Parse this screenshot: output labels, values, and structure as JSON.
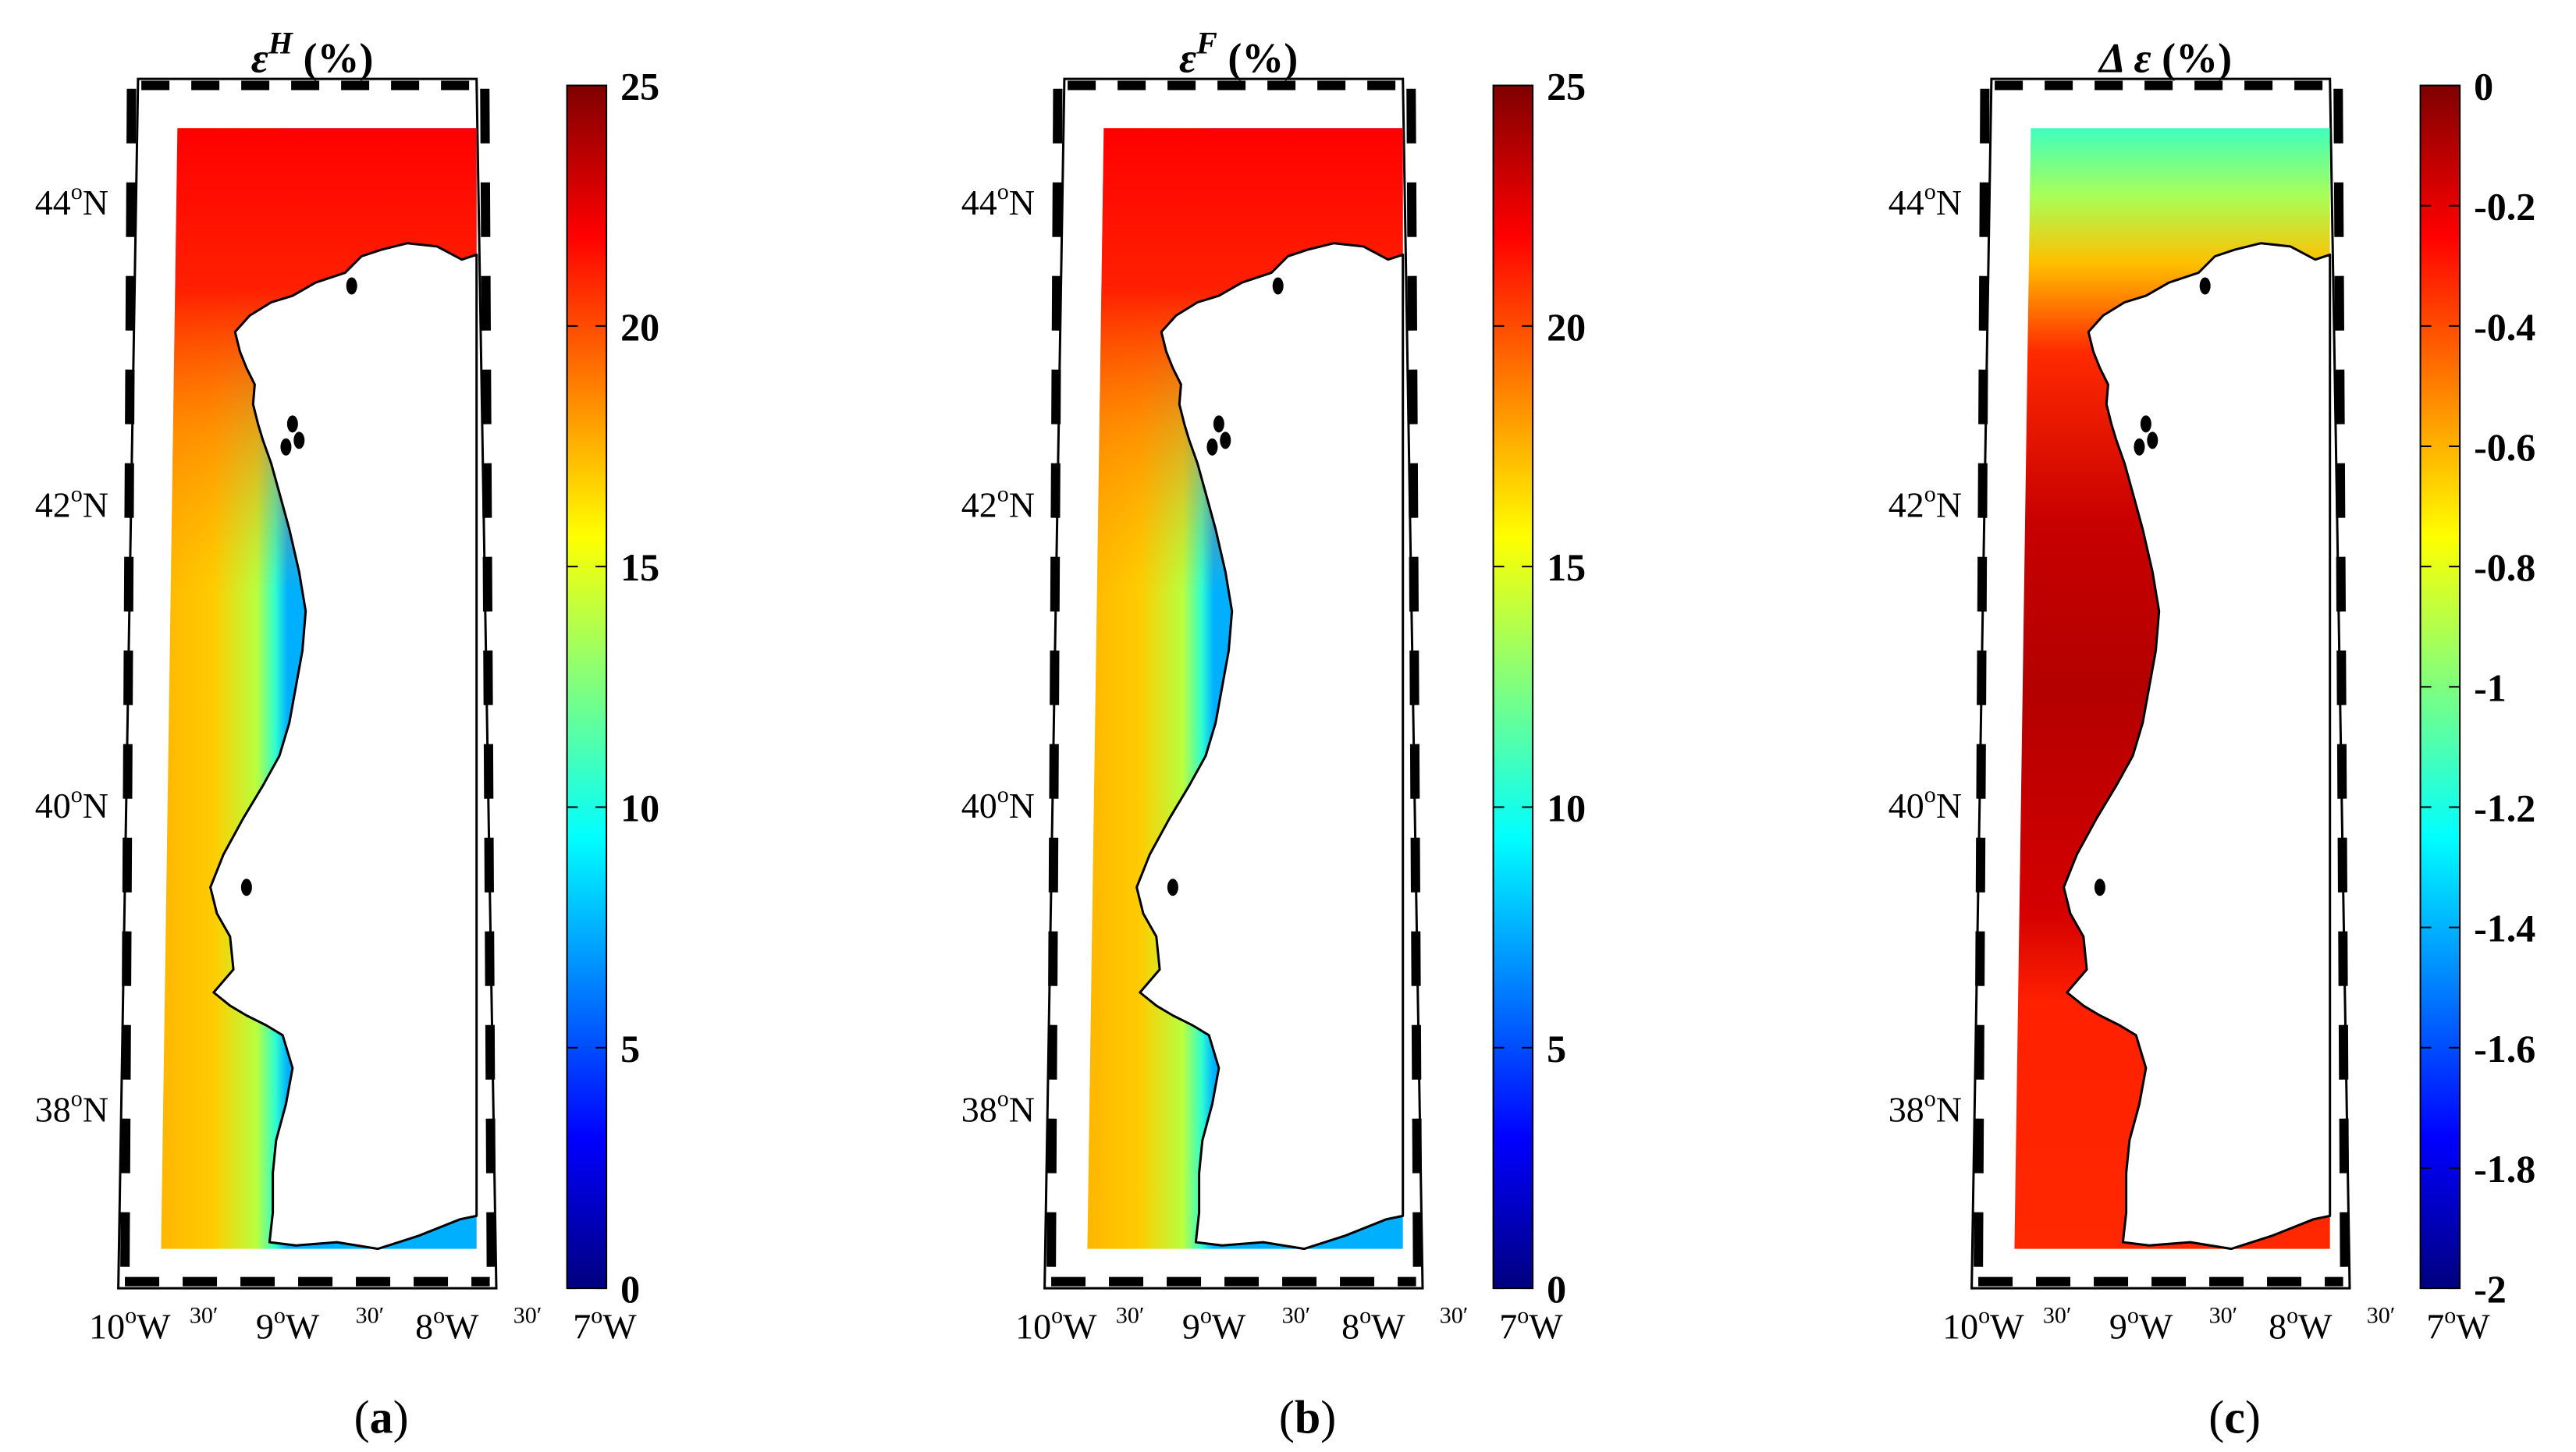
{
  "panels": [
    {
      "id": "a",
      "title": {
        "base": "ε",
        "sup": "H",
        "unit": " (%)"
      },
      "caption": "a",
      "colorbar": {
        "min": 0,
        "max": 25,
        "ticks": [
          "25",
          "20",
          "15",
          "10",
          "5",
          "0"
        ]
      },
      "field": "error-h"
    },
    {
      "id": "b",
      "title": {
        "base": "ε",
        "sup": "F",
        "unit": " (%)"
      },
      "caption": "b",
      "colorbar": {
        "min": 0,
        "max": 25,
        "ticks": [
          "25",
          "20",
          "15",
          "10",
          "5",
          "0"
        ]
      },
      "field": "error-f"
    },
    {
      "id": "c",
      "title": {
        "base": "Δ ε",
        "sup": "",
        "unit": " (%)"
      },
      "caption": "c",
      "colorbar": {
        "min": -2,
        "max": 0,
        "ticks": [
          "0",
          "-0.2",
          "-0.4",
          "-0.6",
          "-0.8",
          "-1",
          "-1.2",
          "-1.4",
          "-1.6",
          "-1.8",
          "-2"
        ]
      },
      "field": "error-diff"
    }
  ],
  "lat_labels": [
    {
      "deg": "44",
      "hem": "N"
    },
    {
      "deg": "42",
      "hem": "N"
    },
    {
      "deg": "40",
      "hem": "N"
    },
    {
      "deg": "38",
      "hem": "N"
    }
  ],
  "lon_labels": [
    {
      "deg": "10",
      "min": "",
      "hem": "W"
    },
    {
      "deg": "",
      "min": "30′",
      "hem": ""
    },
    {
      "deg": "9",
      "min": "",
      "hem": "W"
    },
    {
      "deg": "",
      "min": "30′",
      "hem": ""
    },
    {
      "deg": "8",
      "min": "",
      "hem": "W"
    },
    {
      "deg": "",
      "min": "30′",
      "hem": ""
    },
    {
      "deg": "7",
      "min": "",
      "hem": "W"
    }
  ],
  "degree_sign": "o",
  "colors": {
    "jet": [
      "#00007f",
      "#0000ff",
      "#007fff",
      "#00ffff",
      "#7fff7f",
      "#ffff00",
      "#ff7f00",
      "#ff0000",
      "#7f0000"
    ],
    "land": "#ffffff",
    "coast": "#000000"
  }
}
